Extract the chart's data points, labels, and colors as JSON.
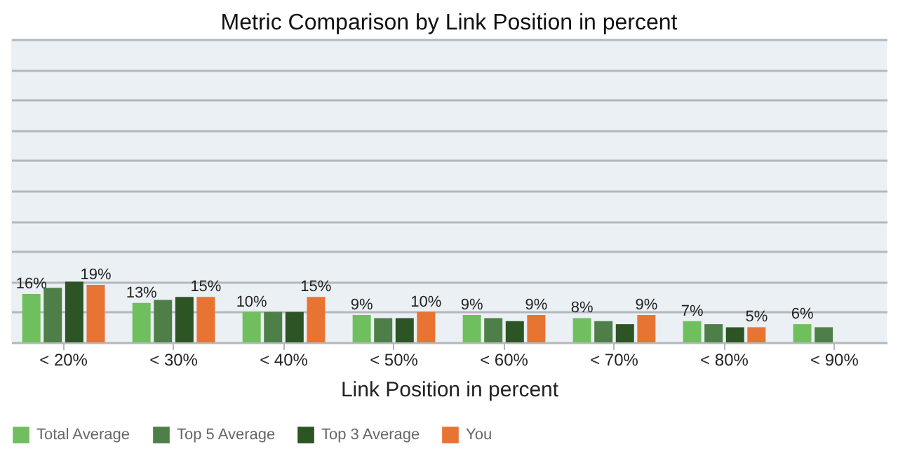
{
  "chart_data": {
    "type": "bar",
    "title": "Metric Comparison by Link Position in percent",
    "xlabel": "Link Position in percent",
    "categories": [
      "< 20%",
      "< 30%",
      "< 40%",
      "< 50%",
      "< 60%",
      "< 70%",
      "< 80%",
      "< 90%"
    ],
    "series": [
      {
        "name": "Total Average",
        "color": "#70bf5f",
        "values": [
          16,
          13,
          10,
          9,
          9,
          8,
          7,
          6
        ],
        "value_labels": [
          "16%",
          "13%",
          "10%",
          "9%",
          "9%",
          "8%",
          "7%",
          "6%"
        ]
      },
      {
        "name": "Top 5 Average",
        "color": "#4e7f48",
        "values": [
          18,
          14,
          10,
          8,
          8,
          7,
          6,
          5
        ]
      },
      {
        "name": "Top 3 Average",
        "color": "#2d5424",
        "values": [
          20,
          15,
          10,
          8,
          7,
          6,
          5,
          null
        ]
      },
      {
        "name": "You",
        "color": "#e87434",
        "values": [
          19,
          15,
          15,
          10,
          9,
          9,
          5,
          null
        ],
        "value_labels": [
          "19%",
          "15%",
          "15%",
          "10%",
          "9%",
          "9%",
          "5%",
          null
        ]
      }
    ],
    "ylim": [
      0,
      100
    ],
    "yticks": [
      {
        "value": 0,
        "label": null
      },
      {
        "value": 10,
        "label": null
      },
      {
        "value": 20,
        "label": null
      },
      {
        "value": 30,
        "label": null
      },
      {
        "value": 40,
        "label": null
      },
      {
        "value": 50,
        "label": null
      },
      {
        "value": 60,
        "label": null
      },
      {
        "value": 70,
        "label": null
      },
      {
        "value": 80,
        "label": null
      },
      {
        "value": 90,
        "label": null
      },
      {
        "value": 100,
        "label": null
      }
    ],
    "tick_labels": "x",
    "grid": "y",
    "legend": "bottom"
  }
}
